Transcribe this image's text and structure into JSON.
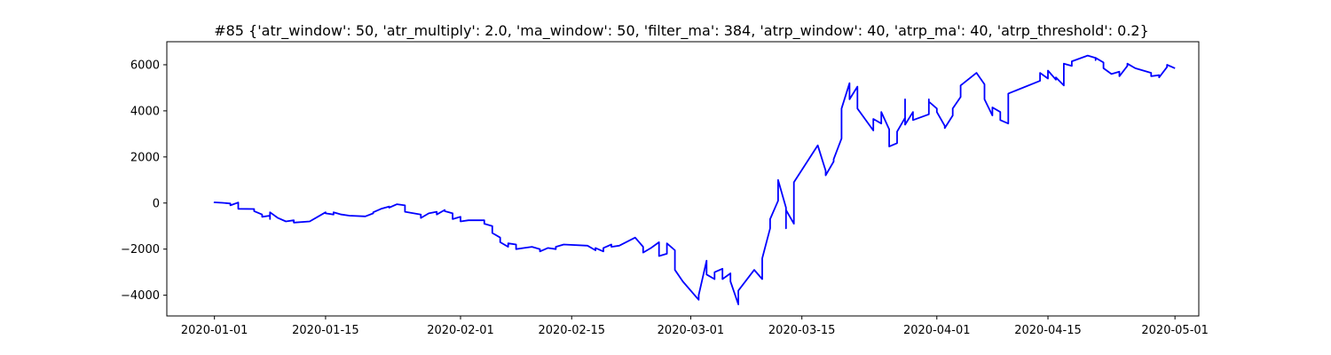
{
  "chart_data": {
    "type": "line",
    "title": "#85 {'atr_window': 50, 'atr_multiply': 2.0, 'ma_window': 50, 'filter_ma': 384, 'atrp_window': 40, 'atrp_ma': 40, 'atrp_threshold': 0.2}",
    "xlabel": "",
    "ylabel": "",
    "xlim": [
      "2019-12-26",
      "2020-05-04"
    ],
    "ylim": [
      -4900,
      7000
    ],
    "grid": false,
    "x_ticks": [
      "2020-01-01",
      "2020-01-15",
      "2020-02-01",
      "2020-02-15",
      "2020-03-01",
      "2020-03-15",
      "2020-04-01",
      "2020-04-15",
      "2020-05-01"
    ],
    "y_ticks": [
      -4000,
      -2000,
      0,
      2000,
      4000,
      6000
    ],
    "y_tick_labels": [
      "−4000",
      "−2000",
      "0",
      "2000",
      "4000",
      "6000"
    ],
    "series": [
      {
        "color": "#0000ff",
        "points": [
          [
            "2020-01-01",
            0
          ],
          [
            "2020-01-01",
            30
          ],
          [
            "2020-01-02",
            10
          ],
          [
            "2020-01-03",
            -20
          ],
          [
            "2020-01-03",
            -100
          ],
          [
            "2020-01-04",
            20
          ],
          [
            "2020-01-04",
            -250
          ],
          [
            "2020-01-06",
            -260
          ],
          [
            "2020-01-06",
            -300
          ],
          [
            "2020-01-06",
            -350
          ],
          [
            "2020-01-07",
            -500
          ],
          [
            "2020-01-07",
            -600
          ],
          [
            "2020-01-08",
            -550
          ],
          [
            "2020-01-08",
            -700
          ],
          [
            "2020-01-08",
            -400
          ],
          [
            "2020-01-09",
            -650
          ],
          [
            "2020-01-10",
            -800
          ],
          [
            "2020-01-11",
            -750
          ],
          [
            "2020-01-11",
            -850
          ],
          [
            "2020-01-13",
            -800
          ],
          [
            "2020-01-14",
            -600
          ],
          [
            "2020-01-15",
            -400
          ],
          [
            "2020-01-15",
            -450
          ],
          [
            "2020-01-16",
            -500
          ],
          [
            "2020-01-16",
            -400
          ],
          [
            "2020-01-17",
            -500
          ],
          [
            "2020-01-18",
            -550
          ],
          [
            "2020-01-20",
            -580
          ],
          [
            "2020-01-21",
            -450
          ],
          [
            "2020-01-21",
            -400
          ],
          [
            "2020-01-22",
            -250
          ],
          [
            "2020-01-23",
            -150
          ],
          [
            "2020-01-23",
            -200
          ],
          [
            "2020-01-24",
            -50
          ],
          [
            "2020-01-25",
            -100
          ],
          [
            "2020-01-25",
            -380
          ],
          [
            "2020-01-27",
            -500
          ],
          [
            "2020-01-27",
            -650
          ],
          [
            "2020-01-28",
            -450
          ],
          [
            "2020-01-29",
            -380
          ],
          [
            "2020-01-29",
            -500
          ],
          [
            "2020-01-30",
            -300
          ],
          [
            "2020-01-30",
            -350
          ],
          [
            "2020-01-31",
            -450
          ],
          [
            "2020-01-31",
            -700
          ],
          [
            "2020-02-01",
            -600
          ],
          [
            "2020-02-01",
            -800
          ],
          [
            "2020-02-02",
            -750
          ],
          [
            "2020-02-04",
            -750
          ],
          [
            "2020-02-04",
            -900
          ],
          [
            "2020-02-05",
            -1000
          ],
          [
            "2020-02-05",
            -1300
          ],
          [
            "2020-02-06",
            -1500
          ],
          [
            "2020-02-06",
            -1700
          ],
          [
            "2020-02-07",
            -1900
          ],
          [
            "2020-02-07",
            -1750
          ],
          [
            "2020-02-08",
            -1800
          ],
          [
            "2020-02-08",
            -2000
          ],
          [
            "2020-02-09",
            -1950
          ],
          [
            "2020-02-10",
            -1900
          ],
          [
            "2020-02-11",
            -2000
          ],
          [
            "2020-02-11",
            -2100
          ],
          [
            "2020-02-12",
            -1950
          ],
          [
            "2020-02-13",
            -2000
          ],
          [
            "2020-02-13",
            -1900
          ],
          [
            "2020-02-14",
            -1800
          ],
          [
            "2020-02-17",
            -1850
          ],
          [
            "2020-02-18",
            -2050
          ],
          [
            "2020-02-18",
            -1950
          ],
          [
            "2020-02-19",
            -2100
          ],
          [
            "2020-02-19",
            -1950
          ],
          [
            "2020-02-20",
            -1800
          ],
          [
            "2020-02-20",
            -1900
          ],
          [
            "2020-02-21",
            -1850
          ],
          [
            "2020-02-23",
            -1500
          ],
          [
            "2020-02-24",
            -1900
          ],
          [
            "2020-02-24",
            -2150
          ],
          [
            "2020-02-25",
            -1950
          ],
          [
            "2020-02-26",
            -1700
          ],
          [
            "2020-02-26",
            -2300
          ],
          [
            "2020-02-27",
            -2200
          ],
          [
            "2020-02-27",
            -1750
          ],
          [
            "2020-02-28",
            -2050
          ],
          [
            "2020-02-28",
            -2200
          ],
          [
            "2020-02-28",
            -2900
          ],
          [
            "2020-02-29",
            -3400
          ],
          [
            "2020-03-02",
            -4200
          ],
          [
            "2020-03-02",
            -4000
          ],
          [
            "2020-03-03",
            -2500
          ],
          [
            "2020-03-03",
            -3100
          ],
          [
            "2020-03-04",
            -3300
          ],
          [
            "2020-03-04",
            -3000
          ],
          [
            "2020-03-05",
            -2850
          ],
          [
            "2020-03-05",
            -3300
          ],
          [
            "2020-03-06",
            -3050
          ],
          [
            "2020-03-06",
            -3400
          ],
          [
            "2020-03-07",
            -4400
          ],
          [
            "2020-03-07",
            -3800
          ],
          [
            "2020-03-09",
            -2900
          ],
          [
            "2020-03-10",
            -3300
          ],
          [
            "2020-03-10",
            -2400
          ],
          [
            "2020-03-11",
            -1100
          ],
          [
            "2020-03-11",
            -700
          ],
          [
            "2020-03-12",
            100
          ],
          [
            "2020-03-12",
            1000
          ],
          [
            "2020-03-13",
            -200
          ],
          [
            "2020-03-13",
            -700
          ],
          [
            "2020-03-13",
            -1100
          ],
          [
            "2020-03-13",
            -300
          ],
          [
            "2020-03-14",
            -900
          ],
          [
            "2020-03-14",
            -300
          ],
          [
            "2020-03-14",
            -250
          ],
          [
            "2020-03-14",
            900
          ],
          [
            "2020-03-17",
            2500
          ],
          [
            "2020-03-18",
            1400
          ],
          [
            "2020-03-18",
            1200
          ],
          [
            "2020-03-19",
            1800
          ],
          [
            "2020-03-19",
            1900
          ],
          [
            "2020-03-20",
            2800
          ],
          [
            "2020-03-20",
            4100
          ],
          [
            "2020-03-21",
            5200
          ],
          [
            "2020-03-21",
            4500
          ],
          [
            "2020-03-22",
            5050
          ],
          [
            "2020-03-22",
            4100
          ],
          [
            "2020-03-24",
            3150
          ],
          [
            "2020-03-24",
            3650
          ],
          [
            "2020-03-25",
            3450
          ],
          [
            "2020-03-25",
            3950
          ],
          [
            "2020-03-26",
            3200
          ],
          [
            "2020-03-26",
            2900
          ],
          [
            "2020-03-26",
            2450
          ],
          [
            "2020-03-27",
            2600
          ],
          [
            "2020-03-27",
            3100
          ],
          [
            "2020-03-28",
            3700
          ],
          [
            "2020-03-28",
            4500
          ],
          [
            "2020-03-28",
            3400
          ],
          [
            "2020-03-29",
            3950
          ],
          [
            "2020-03-29",
            3600
          ],
          [
            "2020-03-31",
            3850
          ],
          [
            "2020-03-31",
            4500
          ],
          [
            "2020-03-31",
            4400
          ],
          [
            "2020-04-01",
            4100
          ],
          [
            "2020-04-01",
            3950
          ],
          [
            "2020-04-02",
            3350
          ],
          [
            "2020-04-02",
            3250
          ],
          [
            "2020-04-03",
            3800
          ],
          [
            "2020-04-03",
            4100
          ],
          [
            "2020-04-04",
            4600
          ],
          [
            "2020-04-04",
            5100
          ],
          [
            "2020-04-06",
            5650
          ],
          [
            "2020-04-07",
            5150
          ],
          [
            "2020-04-07",
            4500
          ],
          [
            "2020-04-08",
            3800
          ],
          [
            "2020-04-08",
            4150
          ],
          [
            "2020-04-09",
            3950
          ],
          [
            "2020-04-09",
            3600
          ],
          [
            "2020-04-10",
            3450
          ],
          [
            "2020-04-10",
            4000
          ],
          [
            "2020-04-10",
            4750
          ],
          [
            "2020-04-14",
            5300
          ],
          [
            "2020-04-14",
            5650
          ],
          [
            "2020-04-15",
            5400
          ],
          [
            "2020-04-15",
            5750
          ],
          [
            "2020-04-16",
            5350
          ],
          [
            "2020-04-16",
            5450
          ],
          [
            "2020-04-17",
            5100
          ],
          [
            "2020-04-17",
            6050
          ],
          [
            "2020-04-18",
            5950
          ],
          [
            "2020-04-18",
            6150
          ],
          [
            "2020-04-20",
            6400
          ],
          [
            "2020-04-21",
            6300
          ],
          [
            "2020-04-21",
            6200
          ],
          [
            "2020-04-21",
            6300
          ],
          [
            "2020-04-22",
            6100
          ],
          [
            "2020-04-22",
            5850
          ],
          [
            "2020-04-23",
            5600
          ],
          [
            "2020-04-24",
            5700
          ],
          [
            "2020-04-24",
            5500
          ],
          [
            "2020-04-25",
            5950
          ],
          [
            "2020-04-25",
            6050
          ],
          [
            "2020-04-26",
            5850
          ],
          [
            "2020-04-27",
            5750
          ],
          [
            "2020-04-28",
            5650
          ],
          [
            "2020-04-28",
            5500
          ],
          [
            "2020-04-29",
            5550
          ],
          [
            "2020-04-29",
            5450
          ],
          [
            "2020-04-30",
            5900
          ],
          [
            "2020-04-30",
            6000
          ],
          [
            "2020-05-01",
            5850
          ]
        ]
      }
    ]
  }
}
